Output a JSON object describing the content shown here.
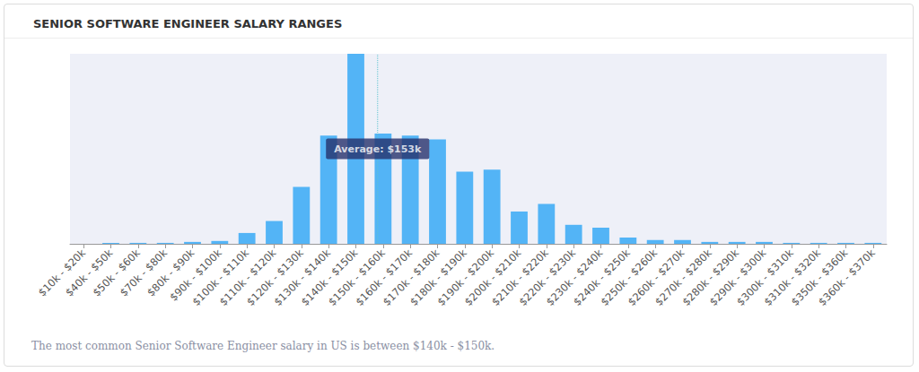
{
  "chart_data": {
    "type": "bar",
    "title": "SENIOR SOFTWARE ENGINEER SALARY RANGES",
    "caption": "The most common Senior Software Engineer salary in US is between $140k - $150k.",
    "categories": [
      "$10k - $20k",
      "$40k - $50k",
      "$50k - $60k",
      "$70k - $80k",
      "$80k - $90k",
      "$90k - $100k",
      "$100k - $110k",
      "$110k - $120k",
      "$120k - $130k",
      "$130k - $140k",
      "$140k - $150k",
      "$150k - $160k",
      "$160k - $170k",
      "$170k - $180k",
      "$180k - $190k",
      "$190k - $200k",
      "$200k - $210k",
      "$210k - $220k",
      "$220k - $230k",
      "$230k - $240k",
      "$240k - $250k",
      "$250k - $260k",
      "$260k - $270k",
      "$270k - $280k",
      "$280k - $290k",
      "$290k - $300k",
      "$300k - $310k",
      "$310k - $320k",
      "$350k - $360k",
      "$360k - $370k"
    ],
    "values": [
      0,
      0.5,
      0.5,
      0.5,
      1,
      1.5,
      5.7,
      12,
      30,
      57,
      100,
      58,
      57,
      55,
      38,
      39,
      17,
      21,
      10,
      8.5,
      3.3,
      2,
      2,
      1,
      1,
      1,
      0.5,
      0.5,
      0.5,
      0.5
    ],
    "color": "#53b4f6",
    "ylim": [
      0,
      100
    ],
    "grid": false,
    "tick_labels": "x",
    "annotations": [
      {
        "text": "Average: $153k",
        "x": 153
      }
    ]
  }
}
